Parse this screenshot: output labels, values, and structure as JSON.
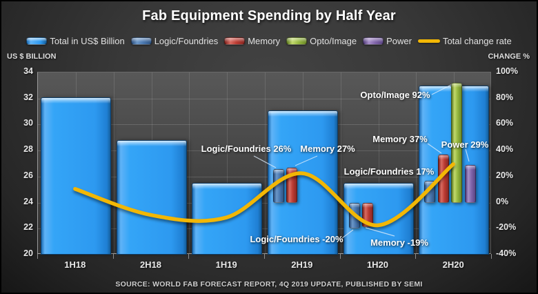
{
  "chart_data": {
    "type": "combo-bar-line",
    "title": "Fab Equipment Spending by Half Year",
    "source": "SOURCE: WORLD FAB FORECAST REPORT, 4Q 2019 UPDATE, PUBLISHED BY SEMI",
    "categories": [
      "1H18",
      "2H18",
      "1H19",
      "2H19",
      "1H20",
      "2H20"
    ],
    "left_axis": {
      "caption": "US $ BILLION",
      "min": 20,
      "max": 34,
      "step": 2,
      "ticks": [
        "34",
        "32",
        "30",
        "28",
        "26",
        "24",
        "22",
        "20"
      ]
    },
    "right_axis": {
      "caption": "CHANGE %",
      "min": -40,
      "max": 100,
      "step": 20,
      "ticks": [
        "100%",
        "80%",
        "60%",
        "40%",
        "20%",
        "0%",
        "-20%",
        "-40%"
      ]
    },
    "grid": true,
    "legend_position": "top",
    "series": [
      {
        "key": "total",
        "name": "Total in US$ Billion",
        "type": "bar",
        "axis": "left",
        "color": "#2e9bf5",
        "values": [
          32.1,
          28.8,
          25.5,
          31.1,
          25.5,
          33.0
        ]
      },
      {
        "key": "logic",
        "name": "Logic/Foundries",
        "type": "bar",
        "axis": "right",
        "color": "#4a78b0",
        "values": [
          null,
          null,
          null,
          26,
          -20,
          17
        ]
      },
      {
        "key": "memory",
        "name": "Memory",
        "type": "bar",
        "axis": "right",
        "color": "#bb3b32",
        "values": [
          null,
          null,
          null,
          27,
          -19,
          37
        ]
      },
      {
        "key": "opto",
        "name": "Opto/Image",
        "type": "bar",
        "axis": "right",
        "color": "#96b83f",
        "values": [
          null,
          null,
          null,
          null,
          null,
          92
        ]
      },
      {
        "key": "power",
        "name": "Power",
        "type": "bar",
        "axis": "right",
        "color": "#8165aa",
        "values": [
          null,
          null,
          null,
          null,
          null,
          29
        ]
      },
      {
        "key": "rate",
        "name": "Total change rate",
        "type": "line",
        "axis": "right",
        "color": "#f2b705",
        "values": [
          10,
          -10,
          -12,
          22,
          -18,
          29
        ]
      }
    ],
    "legend": [
      {
        "key": "total",
        "label": "Total in US$ Billion"
      },
      {
        "key": "logic",
        "label": "Logic/Foundries"
      },
      {
        "key": "memory",
        "label": "Memory"
      },
      {
        "key": "opto",
        "label": "Opto/Image"
      },
      {
        "key": "power",
        "label": "Power"
      },
      {
        "key": "rate",
        "label": "Total change rate"
      }
    ],
    "annotations": [
      {
        "id": "logic26",
        "text": "Logic/Foundries 26%"
      },
      {
        "id": "mem27",
        "text": "Memory 27%"
      },
      {
        "id": "opto92",
        "text": "Opto/Image 92%"
      },
      {
        "id": "mem37",
        "text": "Memory 37%"
      },
      {
        "id": "pow29",
        "text": "Power 29%"
      },
      {
        "id": "logic17",
        "text": "Logic/Foundries 17%"
      },
      {
        "id": "logicm20",
        "text": "Logic/Foundries -20%"
      },
      {
        "id": "memm19",
        "text": "Memory -19%"
      }
    ]
  }
}
